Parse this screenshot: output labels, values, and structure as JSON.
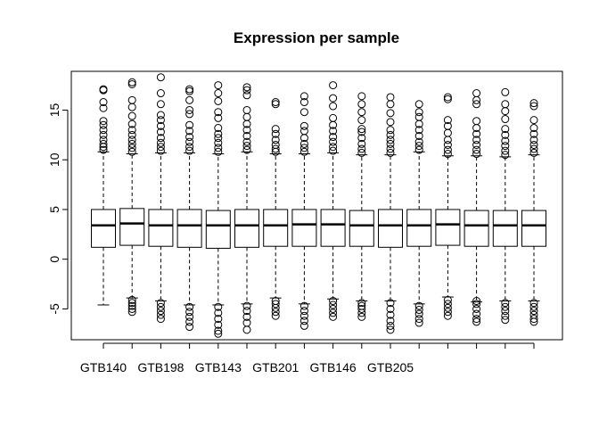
{
  "chart_data": {
    "type": "boxplot",
    "title": "Expression per sample",
    "xlabel": "",
    "ylabel": "",
    "ylim": [
      -8.1,
      18.9
    ],
    "yticks": [
      -5,
      0,
      5,
      10,
      15
    ],
    "x_tick_labels": [
      "GTB140",
      "GTB198",
      "GTB143",
      "GTB201",
      "GTB146",
      "GTB205"
    ],
    "categories": [
      "GTB140",
      "",
      "GTB198",
      "",
      "GTB143",
      "",
      "GTB201",
      "",
      "GTB146",
      "",
      "GTB205",
      "",
      "",
      "",
      "",
      ""
    ],
    "boxes": [
      {
        "min": -4.6,
        "q1": 1.2,
        "median": 3.4,
        "q3": 5.0,
        "max": 10.8,
        "outliers_high": [
          11.0,
          11.3,
          11.6,
          12.0,
          12.5,
          13.0,
          13.5,
          13.9,
          15.2,
          15.8,
          17.0,
          17.1
        ],
        "outliers_low": []
      },
      {
        "min": -3.9,
        "q1": 1.4,
        "median": 3.6,
        "q3": 5.1,
        "max": 10.6,
        "outliers_high": [
          10.8,
          11.2,
          11.6,
          12.0,
          12.5,
          13.0,
          13.6,
          14.4,
          15.3,
          16.0,
          17.6,
          17.8
        ],
        "outliers_low": [
          -4.1,
          -4.4,
          -4.7,
          -5.0,
          -5.3
        ]
      },
      {
        "min": -4.2,
        "q1": 1.3,
        "median": 3.4,
        "q3": 5.0,
        "max": 10.7,
        "outliers_high": [
          10.9,
          11.3,
          11.7,
          12.2,
          12.8,
          13.4,
          14.0,
          14.5,
          15.6,
          16.7,
          18.3
        ],
        "outliers_low": [
          -4.4,
          -4.8,
          -5.2,
          -5.6,
          -6.0
        ]
      },
      {
        "min": -4.6,
        "q1": 1.2,
        "median": 3.4,
        "q3": 5.0,
        "max": 10.7,
        "outliers_high": [
          10.9,
          11.3,
          11.8,
          12.3,
          12.9,
          13.5,
          14.6,
          15.0,
          16.0,
          16.9,
          17.1
        ],
        "outliers_low": [
          -4.8,
          -5.3,
          -5.8,
          -6.3,
          -6.8
        ]
      },
      {
        "min": -4.6,
        "q1": 1.1,
        "median": 3.4,
        "q3": 4.9,
        "max": 10.6,
        "outliers_high": [
          10.8,
          11.2,
          11.7,
          12.2,
          12.6,
          13.2,
          14.2,
          14.8,
          15.9,
          16.7,
          17.5
        ],
        "outliers_low": [
          -4.8,
          -5.4,
          -6.0,
          -6.6,
          -7.2,
          -7.5
        ]
      },
      {
        "min": -4.5,
        "q1": 1.2,
        "median": 3.4,
        "q3": 5.0,
        "max": 10.8,
        "outliers_high": [
          11.0,
          11.4,
          11.8,
          12.4,
          13.0,
          13.6,
          14.3,
          15.0,
          16.5,
          17.0,
          17.3
        ],
        "outliers_low": [
          -4.7,
          -5.2,
          -5.8,
          -6.4,
          -7.1
        ]
      },
      {
        "min": -3.9,
        "q1": 1.3,
        "median": 3.4,
        "q3": 5.0,
        "max": 10.6,
        "outliers_high": [
          10.8,
          11.1,
          11.5,
          12.0,
          12.6,
          13.1,
          15.6,
          15.8
        ],
        "outliers_low": [
          -4.2,
          -4.5,
          -4.9,
          -5.3,
          -5.7
        ]
      },
      {
        "min": -4.5,
        "q1": 1.3,
        "median": 3.5,
        "q3": 5.0,
        "max": 10.6,
        "outliers_high": [
          10.8,
          11.2,
          11.6,
          12.2,
          12.9,
          13.4,
          14.8,
          15.8,
          16.4
        ],
        "outliers_low": [
          -4.7,
          -5.2,
          -5.7,
          -6.2,
          -6.7
        ]
      },
      {
        "min": -4.0,
        "q1": 1.3,
        "median": 3.5,
        "q3": 5.0,
        "max": 10.7,
        "outliers_high": [
          10.9,
          11.3,
          11.8,
          12.3,
          12.9,
          13.5,
          14.2,
          15.4,
          16.2,
          17.5
        ],
        "outliers_low": [
          -4.2,
          -4.6,
          -5.0,
          -5.4,
          -5.8
        ]
      },
      {
        "min": -4.2,
        "q1": 1.3,
        "median": 3.4,
        "q3": 4.9,
        "max": 10.5,
        "outliers_high": [
          10.7,
          11.1,
          11.6,
          12.2,
          12.8,
          13.1,
          14.0,
          14.8,
          15.6,
          16.4
        ],
        "outliers_low": [
          -4.4,
          -4.7,
          -5.0,
          -5.4,
          -5.8
        ]
      },
      {
        "min": -4.2,
        "q1": 1.2,
        "median": 3.4,
        "q3": 5.0,
        "max": 10.5,
        "outliers_high": [
          10.7,
          11.1,
          11.6,
          12.0,
          12.5,
          13.0,
          13.8,
          14.7,
          15.6,
          16.3
        ],
        "outliers_low": [
          -4.4,
          -5.0,
          -5.6,
          -6.2,
          -6.7,
          -7.1
        ]
      },
      {
        "min": -4.5,
        "q1": 1.3,
        "median": 3.4,
        "q3": 5.0,
        "max": 10.8,
        "outliers_high": [
          11.0,
          11.4,
          11.8,
          12.4,
          13.0,
          13.6,
          14.3,
          14.8,
          15.6
        ],
        "outliers_low": [
          -4.7,
          -5.1,
          -5.5,
          -6.0,
          -6.4
        ]
      },
      {
        "min": -3.8,
        "q1": 1.4,
        "median": 3.5,
        "q3": 5.0,
        "max": 10.4,
        "outliers_high": [
          10.6,
          11.0,
          11.5,
          12.0,
          12.7,
          13.4,
          14.0,
          16.1,
          16.3
        ],
        "outliers_low": [
          -4.1,
          -4.5,
          -4.9,
          -5.3,
          -5.7
        ]
      },
      {
        "min": -4.3,
        "q1": 1.3,
        "median": 3.4,
        "q3": 4.9,
        "max": 10.4,
        "outliers_high": [
          10.6,
          11.0,
          11.5,
          12.0,
          12.6,
          13.2,
          13.9,
          15.6,
          16.0,
          16.7
        ],
        "outliers_low": [
          -4.2,
          -4.5,
          -5.0,
          -5.5,
          -6.0,
          -6.3
        ]
      },
      {
        "min": -4.2,
        "q1": 1.3,
        "median": 3.4,
        "q3": 4.9,
        "max": 10.3,
        "outliers_high": [
          10.5,
          10.9,
          11.4,
          11.9,
          12.5,
          13.1,
          14.1,
          14.9,
          15.6,
          16.8
        ],
        "outliers_low": [
          -4.4,
          -4.8,
          -5.2,
          -5.7,
          -6.1
        ]
      },
      {
        "min": -4.2,
        "q1": 1.3,
        "median": 3.4,
        "q3": 4.9,
        "max": 10.5,
        "outliers_high": [
          10.7,
          11.1,
          11.5,
          12.0,
          12.6,
          13.2,
          14.0,
          15.4,
          15.7
        ],
        "outliers_low": [
          -4.4,
          -4.8,
          -5.2,
          -5.6,
          -6.0,
          -6.3
        ]
      }
    ]
  }
}
